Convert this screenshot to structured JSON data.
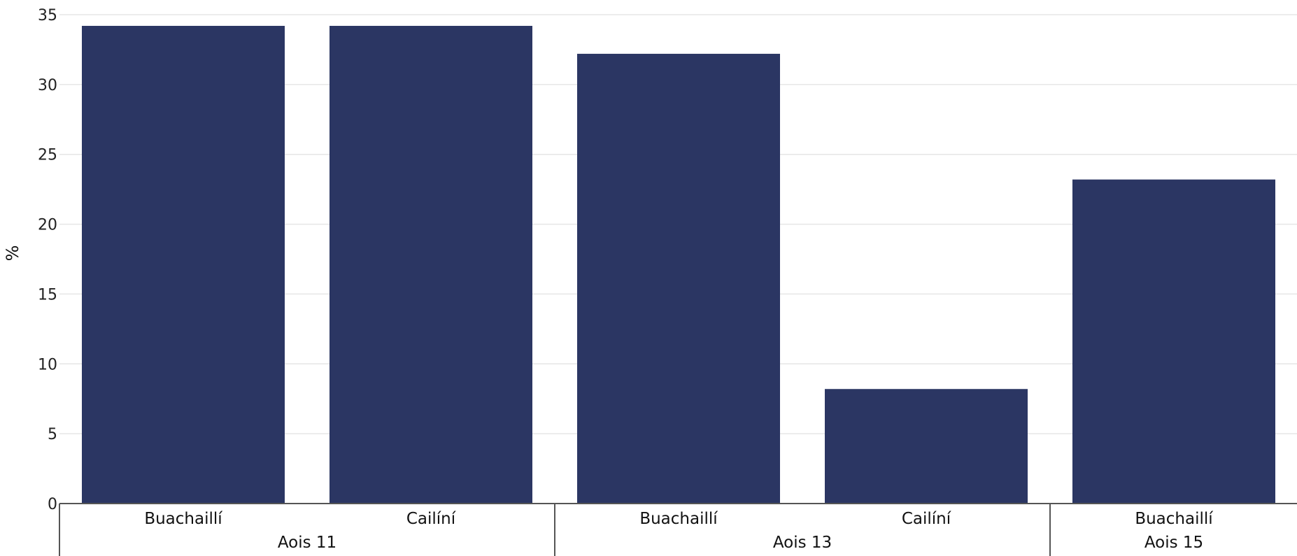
{
  "chart_data": {
    "type": "bar",
    "ylabel": "%",
    "xlabel": "",
    "ylim": [
      0,
      35
    ],
    "yticks": [
      0,
      5,
      10,
      15,
      20,
      25,
      30,
      35
    ],
    "grid": true,
    "groups": [
      {
        "label": "Aois 11",
        "bars": [
          {
            "category": "Buachaillí",
            "value": 34.2
          },
          {
            "category": "Cailíní",
            "value": 34.2
          }
        ]
      },
      {
        "label": "Aois 13",
        "bars": [
          {
            "category": "Buachaillí",
            "value": 32.2
          },
          {
            "category": "Cailíní",
            "value": 8.2
          }
        ]
      },
      {
        "label": "Aois 15",
        "bars": [
          {
            "category": "Buachaillí",
            "value": 23.2
          }
        ]
      }
    ]
  },
  "colors": {
    "bar": "#2b3663",
    "grid": "#e6e6e6",
    "axis": "#555555"
  }
}
